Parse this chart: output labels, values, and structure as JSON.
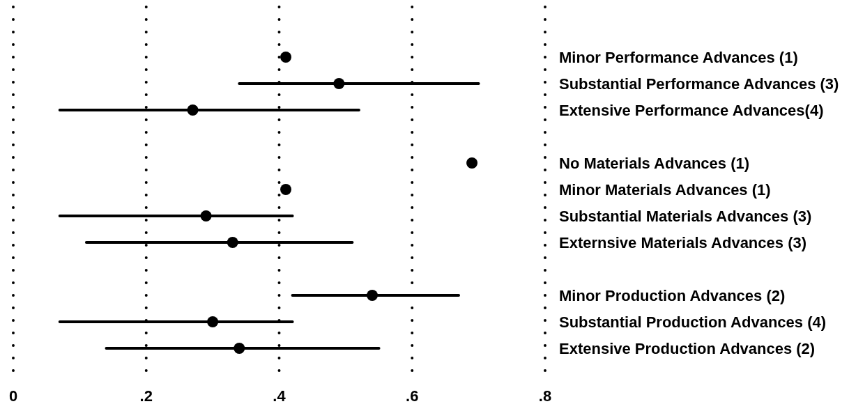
{
  "chart_data": {
    "type": "scatter",
    "orientation": "horizontal",
    "categories": [
      "Minor Performance Advances (1)",
      "Substantial Performance Advances (3)",
      "Extensive Performance Advances(4)",
      null,
      "No Materials Advances (1)",
      "Minor Materials Advances (1)",
      "Substantial Materials Advances (3)",
      "Externsive Materials Advances (3)",
      null,
      "Minor Production Advances (2)",
      "Substantial Production Advances (4)",
      "Extensive Production Advances (2)"
    ],
    "values": [
      0.41,
      0.49,
      0.27,
      null,
      0.69,
      0.41,
      0.29,
      0.33,
      null,
      0.54,
      0.3,
      0.34
    ],
    "errors": [
      null,
      [
        0.34,
        0.7
      ],
      [
        0.07,
        0.52
      ],
      null,
      null,
      null,
      [
        0.07,
        0.42
      ],
      [
        0.11,
        0.51
      ],
      null,
      [
        0.42,
        0.67
      ],
      [
        0.07,
        0.42
      ],
      [
        0.14,
        0.55
      ]
    ],
    "color": "#000000",
    "marker": "circle",
    "xlim": [
      0,
      0.8
    ],
    "xticks": [
      0,
      {
        "value": 0.2,
        "label": ".2"
      },
      {
        "value": 0.4,
        "label": ".4"
      },
      {
        "value": 0.6,
        "label": ".6"
      },
      {
        "value": 0.8,
        "label": ".8"
      }
    ],
    "grid": "x"
  }
}
